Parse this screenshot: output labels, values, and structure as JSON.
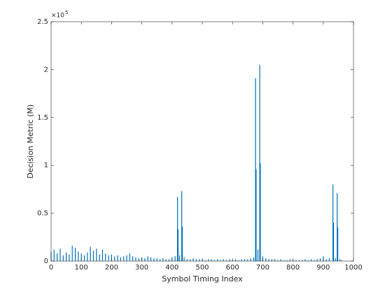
{
  "chart_data": {
    "type": "bar",
    "xlabel": "Symbol Timing Index",
    "ylabel": "Decision Metric (M)",
    "y_multiplier_base": "×10",
    "y_multiplier_exponent": "5",
    "color": "#0072bd",
    "xlim": [
      0,
      1000
    ],
    "xticks": [
      0,
      100,
      200,
      300,
      400,
      500,
      600,
      700,
      800,
      900,
      1000
    ],
    "ylim": [
      0,
      2.5
    ],
    "yticks": [
      0,
      0.5,
      1,
      1.5,
      2,
      2.5
    ],
    "x": [
      0,
      10,
      20,
      30,
      40,
      50,
      60,
      70,
      80,
      90,
      100,
      110,
      120,
      130,
      140,
      150,
      160,
      170,
      180,
      190,
      200,
      210,
      220,
      230,
      240,
      250,
      260,
      270,
      280,
      290,
      300,
      310,
      320,
      330,
      340,
      350,
      360,
      370,
      380,
      390,
      400,
      410,
      418,
      420,
      425,
      432,
      434,
      440,
      450,
      460,
      470,
      480,
      490,
      500,
      510,
      520,
      530,
      540,
      550,
      560,
      570,
      580,
      590,
      600,
      610,
      620,
      630,
      640,
      650,
      660,
      670,
      676,
      678,
      684,
      690,
      692,
      700,
      710,
      720,
      730,
      740,
      750,
      760,
      770,
      780,
      790,
      800,
      810,
      820,
      830,
      840,
      850,
      860,
      870,
      880,
      890,
      900,
      910,
      920,
      932,
      934,
      940,
      946,
      948,
      955,
      960
    ],
    "values": [
      0.1,
      0.12,
      0.08,
      0.13,
      0.06,
      0.09,
      0.07,
      0.16,
      0.14,
      0.1,
      0.08,
      0.06,
      0.09,
      0.15,
      0.11,
      0.13,
      0.07,
      0.12,
      0.08,
      0.06,
      0.07,
      0.05,
      0.06,
      0.04,
      0.05,
      0.06,
      0.08,
      0.05,
      0.04,
      0.03,
      0.04,
      0.03,
      0.05,
      0.04,
      0.03,
      0.03,
      0.02,
      0.03,
      0.02,
      0.02,
      0.04,
      0.05,
      0.67,
      0.33,
      0.06,
      0.73,
      0.36,
      0.04,
      0.02,
      0.02,
      0.03,
      0.02,
      0.02,
      0.02,
      0.01,
      0.02,
      0.02,
      0.01,
      0.02,
      0.01,
      0.02,
      0.01,
      0.02,
      0.01,
      0.02,
      0.01,
      0.02,
      0.02,
      0.02,
      0.03,
      0.04,
      1.91,
      0.96,
      0.12,
      2.05,
      1.02,
      0.05,
      0.03,
      0.02,
      0.02,
      0.02,
      0.01,
      0.02,
      0.01,
      0.01,
      0.02,
      0.01,
      0.01,
      0.01,
      0.01,
      0.02,
      0.01,
      0.02,
      0.01,
      0.02,
      0.03,
      0.05,
      0.02,
      0.03,
      0.8,
      0.4,
      0.03,
      0.71,
      0.35,
      0.02,
      0.01
    ]
  }
}
